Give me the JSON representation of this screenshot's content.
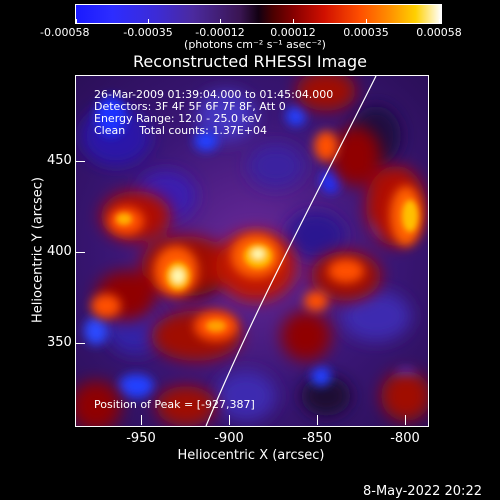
{
  "colorbar": {
    "tick_labels": [
      "-0.00058",
      "-0.00035",
      "-0.00012",
      "0.00012",
      "0.00035",
      "0.00058"
    ],
    "units": "(photons cm⁻² s⁻¹ asec⁻²)"
  },
  "title": "Reconstructed RHESSI Image",
  "info": {
    "time_range": "26-Mar-2009 01:39:04.000 to 01:45:04.000",
    "detectors": "Detectors: 3F 4F 5F 6F 7F 8F, Att 0",
    "energy": "Energy Range: 12.0 - 25.0 keV",
    "clean": "Clean    Total counts: 1.37E+04"
  },
  "peak": "Position of Peak = [-927,387]",
  "axes": {
    "xlabel": "Heliocentric X (arcsec)",
    "ylabel": "Heliocentric Y (arcsec)",
    "x_ticks": [
      "-950",
      "-900",
      "-850",
      "-800"
    ],
    "y_ticks": [
      "450",
      "400",
      "350"
    ]
  },
  "footer": "8-May-2022 20:22"
}
